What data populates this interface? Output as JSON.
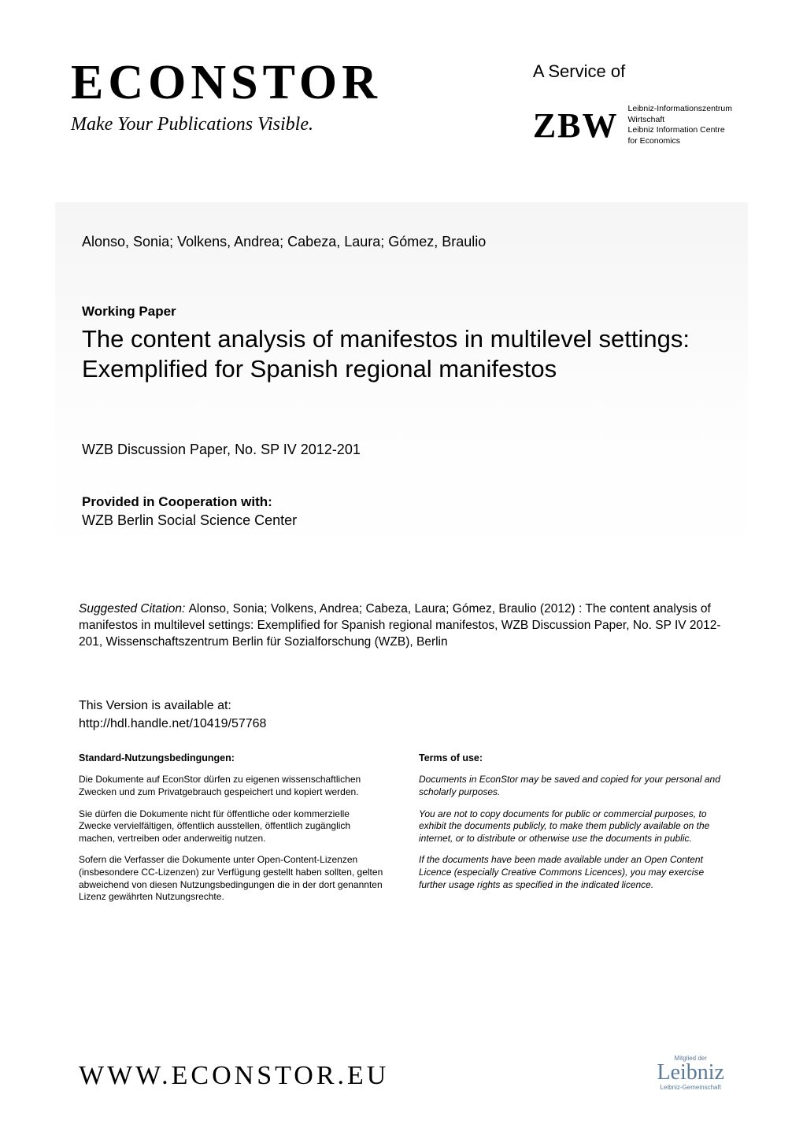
{
  "header": {
    "logo_text": "ECONSTOR",
    "tagline": "Make Your Publications Visible.",
    "service_of": "A Service of",
    "zbw_logo": "ZBW",
    "zbw_lines": [
      "Leibniz-Informationszentrum",
      "Wirtschaft",
      "Leibniz Information Centre",
      "for Economics"
    ]
  },
  "card": {
    "authors": "Alonso, Sonia; Volkens, Andrea; Cabeza, Laura; Gómez, Braulio",
    "doc_type": "Working Paper",
    "title": "The content analysis of manifestos in multilevel settings: Exemplified for Spanish regional manifestos",
    "series": "WZB Discussion Paper, No. SP IV 2012-201",
    "coop_label": "Provided in Cooperation with:",
    "coop_value": "WZB Berlin Social Science Center"
  },
  "citation": {
    "label": "Suggested Citation: ",
    "text": "Alonso, Sonia; Volkens, Andrea; Cabeza, Laura; Gómez, Braulio (2012) : The content analysis of manifestos in multilevel settings: Exemplified for Spanish regional manifestos, WZB Discussion Paper, No. SP IV 2012-201, Wissenschaftszentrum Berlin für Sozialforschung (WZB), Berlin"
  },
  "version": {
    "label": "This Version is available at:",
    "url": "http://hdl.handle.net/10419/57768"
  },
  "terms": {
    "de": {
      "heading": "Standard-Nutzungsbedingungen:",
      "p1": "Die Dokumente auf EconStor dürfen zu eigenen wissenschaftlichen Zwecken und zum Privatgebrauch gespeichert und kopiert werden.",
      "p2": "Sie dürfen die Dokumente nicht für öffentliche oder kommerzielle Zwecke vervielfältigen, öffentlich ausstellen, öffentlich zugänglich machen, vertreiben oder anderweitig nutzen.",
      "p3": "Sofern die Verfasser die Dokumente unter Open-Content-Lizenzen (insbesondere CC-Lizenzen) zur Verfügung gestellt haben sollten, gelten abweichend von diesen Nutzungsbedingungen die in der dort genannten Lizenz gewährten Nutzungsrechte."
    },
    "en": {
      "heading": "Terms of use:",
      "p1": "Documents in EconStor may be saved and copied for your personal and scholarly purposes.",
      "p2": "You are not to copy documents for public or commercial purposes, to exhibit the documents publicly, to make them publicly available on the internet, or to distribute or otherwise use the documents in public.",
      "p3": "If the documents have been made available under an Open Content Licence (especially Creative Commons Licences), you may exercise further usage rights as specified in the indicated licence."
    }
  },
  "footer": {
    "url": "WWW.ECONSTOR.EU",
    "leibniz_top": "Mitglied der",
    "leibniz_script": "Leibniz",
    "leibniz_bottom": "Leibniz-Gemeinschaft"
  },
  "colors": {
    "text": "#000000",
    "bg": "#ffffff",
    "card_top": "#f5f5f5",
    "leibniz": "#5b7a9a"
  }
}
